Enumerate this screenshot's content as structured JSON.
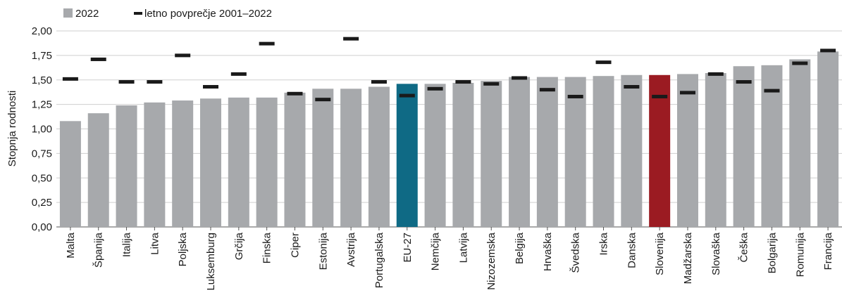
{
  "chart_data": {
    "type": "bar",
    "ylabel": "Stopnja rodnosti",
    "xlabel": "",
    "ylim": [
      0,
      2
    ],
    "yticks": [
      "0,00",
      "0,25",
      "0,50",
      "0,75",
      "1,00",
      "1,25",
      "1,50",
      "1,75",
      "2,00"
    ],
    "grid": true,
    "legend_position": "top-left",
    "categories": [
      "Malta",
      "Španija",
      "Italija",
      "Litva",
      "Poljska",
      "Luksemburg",
      "Grčija",
      "Finska",
      "Ciper",
      "Estonija",
      "Avstrija",
      "Portugalska",
      "EU-27",
      "Nemčija",
      "Latvija",
      "Nizozemska",
      "Belgija",
      "Hrvaška",
      "Švedska",
      "Irska",
      "Danska",
      "Slovenija",
      "Madžarska",
      "Slovaška",
      "Češka",
      "Bolgarija",
      "Romunija",
      "Francija"
    ],
    "series": [
      {
        "name": "2022",
        "type": "bar",
        "values": [
          1.08,
          1.16,
          1.24,
          1.27,
          1.29,
          1.31,
          1.32,
          1.32,
          1.37,
          1.41,
          1.41,
          1.43,
          1.46,
          1.46,
          1.47,
          1.49,
          1.53,
          1.53,
          1.53,
          1.54,
          1.55,
          1.55,
          1.56,
          1.57,
          1.64,
          1.65,
          1.71,
          1.79
        ]
      },
      {
        "name": "letno povprečje 2001–2022",
        "type": "marker",
        "values": [
          1.51,
          1.71,
          1.48,
          1.48,
          1.75,
          1.43,
          1.56,
          1.87,
          1.36,
          1.3,
          1.92,
          1.48,
          1.34,
          1.41,
          1.48,
          1.46,
          1.52,
          1.4,
          1.33,
          1.68,
          1.43,
          1.33,
          1.37,
          1.56,
          1.48,
          1.39,
          1.67,
          1.8
        ]
      }
    ],
    "colors": {
      "bar": "#a7a9ac",
      "highlight_eu": "#0f6a85",
      "highlight_si": "#9b1b22",
      "marker": "#1a1a1a",
      "grid": "#cfcfcf"
    },
    "highlights": {
      "EU-27": "highlight_eu",
      "Slovenija": "highlight_si"
    }
  }
}
